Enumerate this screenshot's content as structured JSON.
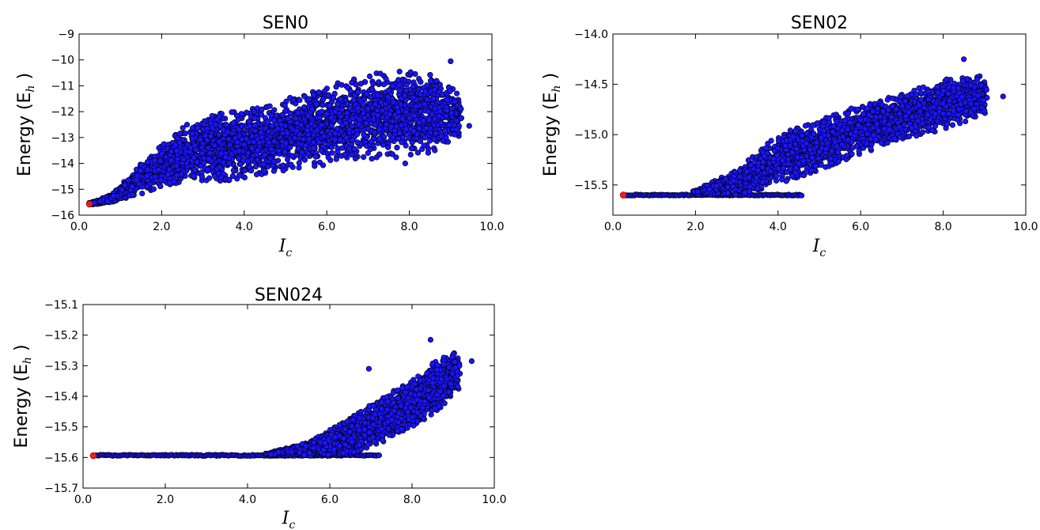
{
  "chart_data": [
    {
      "type": "scatter",
      "title": "SEN0",
      "ylabel": "Energy (E",
      "ylabel_sub": "h",
      "ylabel_close": ")",
      "xlabel": "I",
      "xlabel_sub": "c",
      "xlim": [
        0.0,
        10.0
      ],
      "ylim": [
        -16,
        -9
      ],
      "xticks": [
        "0.0",
        "2.0",
        "4.0",
        "6.0",
        "8.0",
        "10.0"
      ],
      "xtick_values": [
        0,
        2,
        4,
        6,
        8,
        10
      ],
      "yticks": [
        "−16",
        "−15",
        "−14",
        "−13",
        "−12",
        "−11",
        "−10",
        "−9"
      ],
      "ytick_values": [
        -16,
        -15,
        -14,
        -13,
        -12,
        -11,
        -10,
        -9
      ],
      "point_color": "#1a14ff",
      "highlight_color": "#e8211b",
      "highlight_point": [
        0.25,
        -15.57
      ],
      "envelope": [
        {
          "x": 0.3,
          "lo": -15.6,
          "hi": -15.5
        },
        {
          "x": 0.8,
          "lo": -15.5,
          "hi": -15.2
        },
        {
          "x": 1.5,
          "lo": -15.2,
          "hi": -14.0
        },
        {
          "x": 2.0,
          "lo": -14.9,
          "hi": -13.3
        },
        {
          "x": 2.6,
          "lo": -14.7,
          "hi": -12.5
        },
        {
          "x": 3.5,
          "lo": -14.7,
          "hi": -12.0
        },
        {
          "x": 4.5,
          "lo": -14.4,
          "hi": -11.8
        },
        {
          "x": 5.5,
          "lo": -14.2,
          "hi": -11.2
        },
        {
          "x": 6.5,
          "lo": -13.9,
          "hi": -10.8
        },
        {
          "x": 7.5,
          "lo": -13.8,
          "hi": -10.4
        },
        {
          "x": 8.5,
          "lo": -13.6,
          "hi": -10.5
        },
        {
          "x": 9.2,
          "lo": -13.0,
          "hi": -11.2
        }
      ],
      "outliers": [
        [
          9.0,
          -10.05
        ],
        [
          9.45,
          -12.55
        ],
        [
          7.9,
          -14.0
        ]
      ]
    },
    {
      "type": "scatter",
      "title": "SEN02",
      "ylabel": "Energy (E",
      "ylabel_sub": "h",
      "ylabel_close": ")",
      "xlabel": "I",
      "xlabel_sub": "c",
      "xlim": [
        0.0,
        10.0
      ],
      "ylim": [
        -15.8,
        -14.0
      ],
      "xticks": [
        "0.0",
        "2.0",
        "4.0",
        "6.0",
        "8.0",
        "10.0"
      ],
      "xtick_values": [
        0,
        2,
        4,
        6,
        8,
        10
      ],
      "yticks": [
        "−15.5",
        "−15.0",
        "−14.5",
        "−14.0"
      ],
      "ytick_values": [
        -15.5,
        -15.0,
        -14.5,
        -14.0
      ],
      "point_color": "#1a14ff",
      "highlight_color": "#e8211b",
      "highlight_point": [
        0.25,
        -15.6
      ],
      "baseline": {
        "y": -15.6,
        "x_from": 0.3,
        "x_to": 4.6
      },
      "envelope": [
        {
          "x": 2.0,
          "lo": -15.6,
          "hi": -15.55
        },
        {
          "x": 3.0,
          "lo": -15.6,
          "hi": -15.35
        },
        {
          "x": 4.0,
          "lo": -15.5,
          "hi": -15.0
        },
        {
          "x": 5.0,
          "lo": -15.35,
          "hi": -14.85
        },
        {
          "x": 6.0,
          "lo": -15.2,
          "hi": -14.7
        },
        {
          "x": 7.0,
          "lo": -15.05,
          "hi": -14.6
        },
        {
          "x": 8.0,
          "lo": -14.95,
          "hi": -14.45
        },
        {
          "x": 9.0,
          "lo": -14.8,
          "hi": -14.4
        }
      ],
      "outliers": [
        [
          8.5,
          -14.25
        ],
        [
          9.45,
          -14.62
        ]
      ]
    },
    {
      "type": "scatter",
      "title": "SEN024",
      "ylabel": "Energy (E",
      "ylabel_sub": "h",
      "ylabel_close": ")",
      "xlabel": "I",
      "xlabel_sub": "c",
      "xlim": [
        0.0,
        10.0
      ],
      "ylim": [
        -15.7,
        -15.1
      ],
      "xticks": [
        "0.0",
        "2.0",
        "4.0",
        "6.0",
        "8.0",
        "10.0"
      ],
      "xtick_values": [
        0,
        2,
        4,
        6,
        8,
        10
      ],
      "yticks": [
        "−15.7",
        "−15.6",
        "−15.5",
        "−15.4",
        "−15.3",
        "−15.2",
        "−15.1"
      ],
      "ytick_values": [
        -15.7,
        -15.6,
        -15.5,
        -15.4,
        -15.3,
        -15.2,
        -15.1
      ],
      "point_color": "#1a14ff",
      "highlight_color": "#e8211b",
      "highlight_point": [
        0.25,
        -15.594
      ],
      "baseline": {
        "y": -15.593,
        "x_from": 0.3,
        "x_to": 7.2
      },
      "envelope": [
        {
          "x": 4.5,
          "lo": -15.595,
          "hi": -15.585
        },
        {
          "x": 5.5,
          "lo": -15.595,
          "hi": -15.55
        },
        {
          "x": 6.5,
          "lo": -15.59,
          "hi": -15.47
        },
        {
          "x": 7.3,
          "lo": -15.55,
          "hi": -15.4
        },
        {
          "x": 8.0,
          "lo": -15.5,
          "hi": -15.35
        },
        {
          "x": 8.6,
          "lo": -15.45,
          "hi": -15.28
        },
        {
          "x": 9.1,
          "lo": -15.38,
          "hi": -15.25
        }
      ],
      "outliers": [
        [
          8.45,
          -15.215
        ],
        [
          9.45,
          -15.285
        ],
        [
          6.95,
          -15.31
        ]
      ]
    }
  ]
}
